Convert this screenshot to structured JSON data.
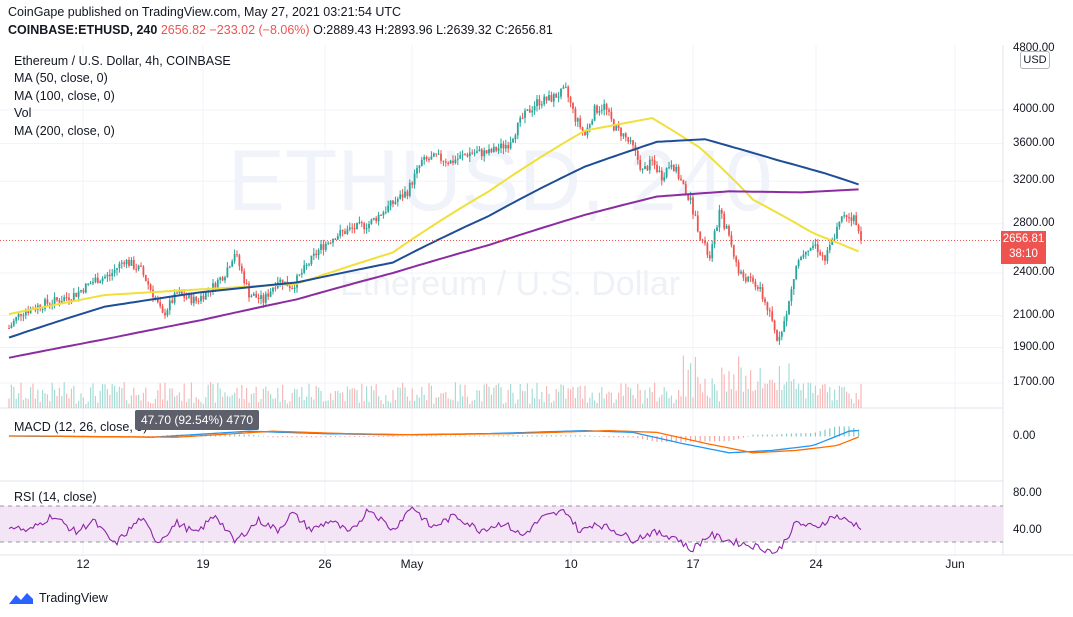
{
  "header": {
    "published": "CoinGape published on TradingView.com, May 27, 2021 03:21:54 UTC",
    "symbol": "COINBASE:ETHUSD, 240",
    "last": "2656.82",
    "change": "−233.02 (−8.06%)",
    "open": "O:2889.43",
    "high": "H:2893.96",
    "low": "L:2639.32",
    "close": "C:2656.81"
  },
  "legend": {
    "title": "Ethereum / U.S. Dollar, 4h, COINBASE",
    "ma50": "MA (50, close, 0)",
    "ma100": "MA (100, close, 0)",
    "vol": "Vol",
    "ma200": "MA (200, close, 0)"
  },
  "watermark": "ETHUSD, 240",
  "watermark_sub": "Ethereum / U.S. Dollar",
  "currency_button": "USD",
  "price_tag": {
    "price": "2656.81",
    "countdown": "38:10"
  },
  "macd": {
    "label": "MACD (12, 26, close, 9)",
    "tooltip": "47.70 (92.54%) 4770",
    "tick": "0.00"
  },
  "rsi": {
    "label": "RSI (14, close)",
    "ticks": [
      "80.00",
      "40.00"
    ]
  },
  "footer": {
    "brand": "TradingView"
  },
  "colors": {
    "up": "#26a69a",
    "down": "#ef5350",
    "ma50": "#f0e03a",
    "ma100": "#1e4e96",
    "ma200": "#8b2ca0",
    "macd": "#2196f3",
    "signal": "#ff6d00",
    "rsi": "#8e24aa",
    "rsi_band": "#f3e5f5"
  },
  "chart_data": {
    "type": "candlestick",
    "price_ticks": [
      "4000.00",
      "3600.00",
      "3200.00",
      "2800.00",
      "2400.00",
      "2100.00",
      "1900.00",
      "1700.00"
    ],
    "price_range": [
      1700,
      4300
    ],
    "x_ticks": [
      "12",
      "19",
      "26",
      "May",
      "10",
      "17",
      "24",
      "Jun"
    ],
    "close_path": [
      [
        0,
        2020
      ],
      [
        5,
        2120
      ],
      [
        10,
        2150
      ],
      [
        15,
        2180
      ],
      [
        20,
        2200
      ],
      [
        28,
        2250
      ],
      [
        36,
        2350
      ],
      [
        42,
        2380
      ],
      [
        48,
        2500
      ],
      [
        55,
        2420
      ],
      [
        60,
        2250
      ],
      [
        64,
        2100
      ],
      [
        70,
        2250
      ],
      [
        78,
        2200
      ],
      [
        85,
        2300
      ],
      [
        90,
        2400
      ],
      [
        94,
        2560
      ],
      [
        100,
        2250
      ],
      [
        106,
        2200
      ],
      [
        112,
        2350
      ],
      [
        118,
        2300
      ],
      [
        124,
        2450
      ],
      [
        130,
        2600
      ],
      [
        136,
        2700
      ],
      [
        142,
        2750
      ],
      [
        150,
        2800
      ],
      [
        158,
        2950
      ],
      [
        166,
        3100
      ],
      [
        172,
        3400
      ],
      [
        178,
        3450
      ],
      [
        184,
        3400
      ],
      [
        192,
        3500
      ],
      [
        200,
        3500
      ],
      [
        208,
        3600
      ],
      [
        214,
        3900
      ],
      [
        220,
        4100
      ],
      [
        226,
        4150
      ],
      [
        232,
        4250
      ],
      [
        236,
        3900
      ],
      [
        240,
        3700
      ],
      [
        244,
        4000
      ],
      [
        248,
        4050
      ],
      [
        252,
        3800
      ],
      [
        256,
        3700
      ],
      [
        260,
        3550
      ],
      [
        264,
        3300
      ],
      [
        268,
        3400
      ],
      [
        272,
        3250
      ],
      [
        276,
        3400
      ],
      [
        280,
        3200
      ],
      [
        284,
        3000
      ],
      [
        288,
        2700
      ],
      [
        292,
        2500
      ],
      [
        296,
        2900
      ],
      [
        300,
        2700
      ],
      [
        304,
        2400
      ],
      [
        308,
        2350
      ],
      [
        312,
        2300
      ],
      [
        316,
        2150
      ],
      [
        320,
        1950
      ],
      [
        324,
        2100
      ],
      [
        328,
        2450
      ],
      [
        332,
        2600
      ],
      [
        336,
        2620
      ],
      [
        340,
        2500
      ],
      [
        344,
        2700
      ],
      [
        348,
        2890
      ],
      [
        352,
        2850
      ],
      [
        355,
        2656.81
      ]
    ],
    "series": [
      {
        "name": "MA (50, close, 0)",
        "values": [
          [
            0,
            2110
          ],
          [
            40,
            2240
          ],
          [
            80,
            2280
          ],
          [
            120,
            2320
          ],
          [
            160,
            2560
          ],
          [
            200,
            3100
          ],
          [
            240,
            3750
          ],
          [
            268,
            3900
          ],
          [
            288,
            3550
          ],
          [
            310,
            3020
          ],
          [
            335,
            2720
          ],
          [
            355,
            2560
          ]
        ]
      },
      {
        "name": "MA (100, close, 0)",
        "values": [
          [
            0,
            1960
          ],
          [
            40,
            2160
          ],
          [
            80,
            2260
          ],
          [
            120,
            2330
          ],
          [
            160,
            2480
          ],
          [
            200,
            2870
          ],
          [
            240,
            3350
          ],
          [
            270,
            3620
          ],
          [
            290,
            3650
          ],
          [
            320,
            3420
          ],
          [
            340,
            3280
          ],
          [
            355,
            3160
          ]
        ]
      },
      {
        "name": "MA (200, close, 0)",
        "values": [
          [
            0,
            1840
          ],
          [
            40,
            1950
          ],
          [
            80,
            2070
          ],
          [
            120,
            2210
          ],
          [
            160,
            2400
          ],
          [
            200,
            2620
          ],
          [
            240,
            2880
          ],
          [
            270,
            3050
          ],
          [
            300,
            3100
          ],
          [
            330,
            3090
          ],
          [
            355,
            3120
          ]
        ]
      }
    ],
    "macd_values": [
      [
        0,
        0
      ],
      [
        60,
        -10
      ],
      [
        100,
        40
      ],
      [
        130,
        20
      ],
      [
        160,
        10
      ],
      [
        200,
        20
      ],
      [
        240,
        45
      ],
      [
        260,
        30
      ],
      [
        280,
        -60
      ],
      [
        300,
        -140
      ],
      [
        318,
        -120
      ],
      [
        335,
        -80
      ],
      [
        350,
        40
      ],
      [
        355,
        47.7
      ]
    ],
    "rsi_values": [
      [
        0,
        54
      ],
      [
        8,
        49
      ],
      [
        18,
        62
      ],
      [
        28,
        48
      ],
      [
        35,
        58
      ],
      [
        44,
        38
      ],
      [
        55,
        60
      ],
      [
        62,
        40
      ],
      [
        70,
        56
      ],
      [
        78,
        47
      ],
      [
        86,
        63
      ],
      [
        94,
        40
      ],
      [
        104,
        58
      ],
      [
        112,
        50
      ],
      [
        118,
        64
      ],
      [
        126,
        50
      ],
      [
        134,
        58
      ],
      [
        142,
        47
      ],
      [
        150,
        68
      ],
      [
        160,
        50
      ],
      [
        168,
        70
      ],
      [
        176,
        52
      ],
      [
        186,
        62
      ],
      [
        196,
        50
      ],
      [
        206,
        56
      ],
      [
        214,
        45
      ],
      [
        222,
        60
      ],
      [
        232,
        66
      ],
      [
        238,
        48
      ],
      [
        244,
        56
      ],
      [
        252,
        50
      ],
      [
        260,
        42
      ],
      [
        268,
        48
      ],
      [
        278,
        44
      ],
      [
        284,
        33
      ],
      [
        292,
        46
      ],
      [
        302,
        40
      ],
      [
        312,
        36
      ],
      [
        320,
        31
      ],
      [
        328,
        56
      ],
      [
        336,
        52
      ],
      [
        344,
        62
      ],
      [
        350,
        57
      ],
      [
        355,
        53
      ]
    ]
  }
}
